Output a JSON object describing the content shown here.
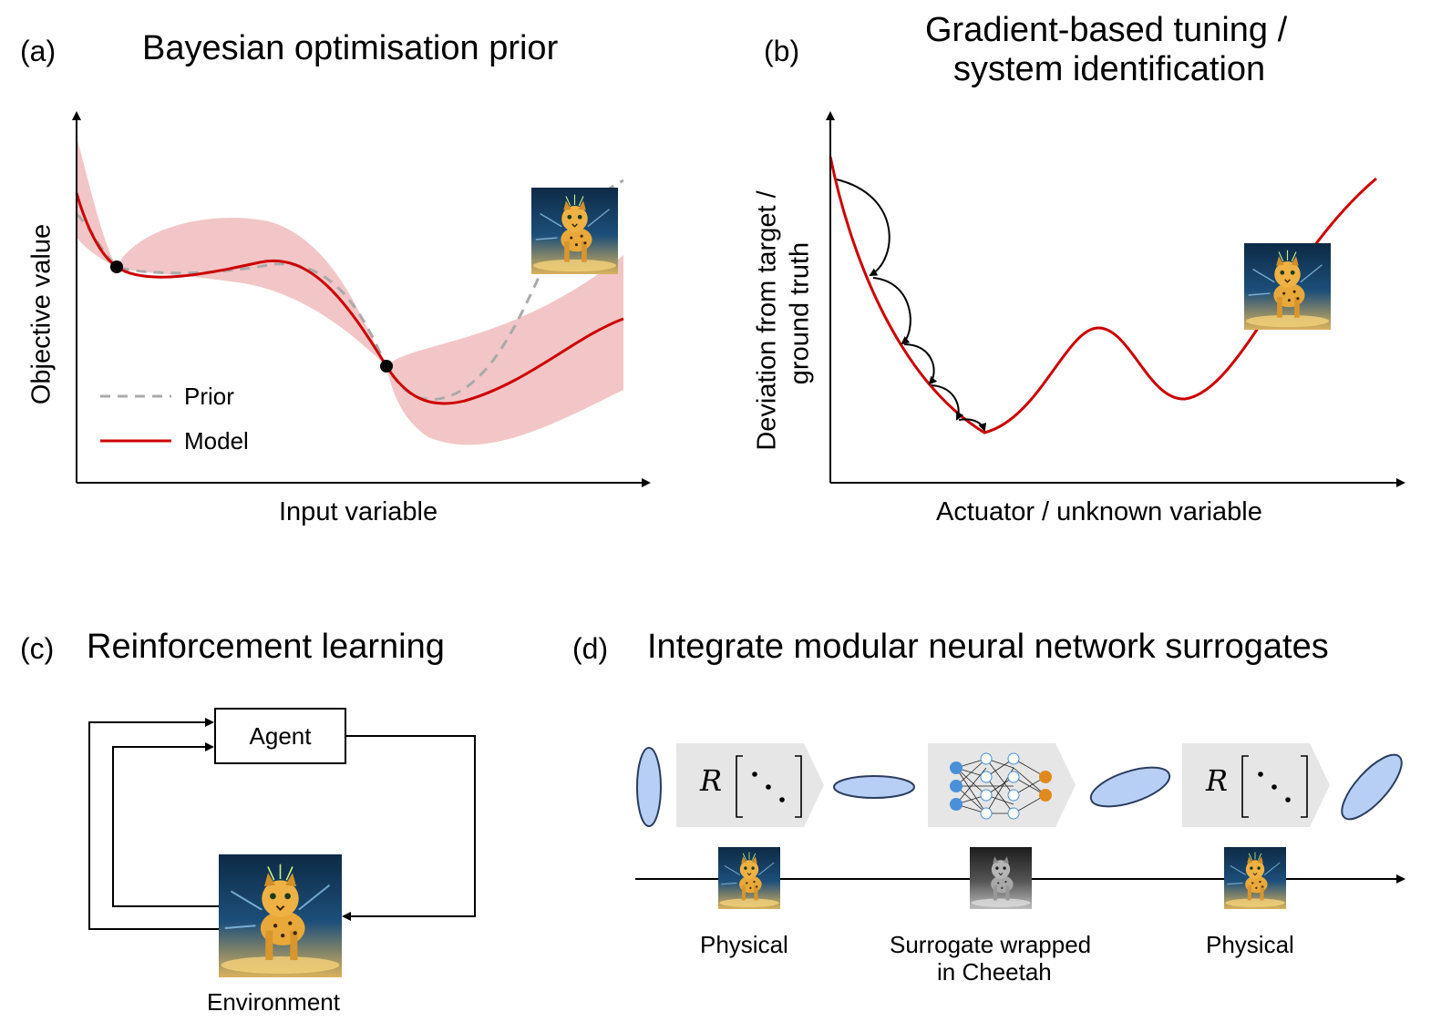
{
  "panel_a": {
    "letter": "(a)",
    "title": "Bayesian optimisation prior",
    "ylabel": "Objective value",
    "xlabel": "Input variable",
    "legend": [
      {
        "label": "Prior",
        "color": "#aaaaaa",
        "style": "dashed"
      },
      {
        "label": "Model",
        "color": "#cc0000",
        "style": "solid"
      }
    ],
    "band_color": "#f2c6c6",
    "observed_points": 2
  },
  "panel_b": {
    "letter": "(b)",
    "title_line1": "Gradient-based tuning /",
    "title_line2": "system identification",
    "ylabel_line1": "Deviation from target /",
    "ylabel_line2": "ground truth",
    "xlabel": "Actuator / unknown variable",
    "gradient_steps": 5
  },
  "panel_c": {
    "letter": "(c)",
    "title": "Reinforcement learning",
    "agent_label": "Agent",
    "environment_label": "Environment"
  },
  "panel_d": {
    "letter": "(d)",
    "title": "Integrate modular neural network surrogates",
    "blocks": [
      "R[⋱]",
      "neural-network",
      "R[⋱]"
    ],
    "beam_color": "#b8cff5",
    "captions": [
      "Physical",
      "Surrogate wrapped",
      "in Cheetah",
      "Physical"
    ]
  },
  "icons": [
    "cheetah-mascot-icon",
    "cheetah-mascot-grayscale-icon",
    "neural-network-icon"
  ]
}
